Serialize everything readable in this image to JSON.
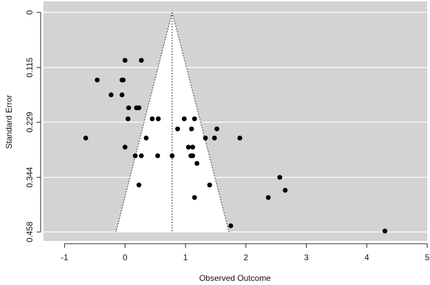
{
  "chart_data": {
    "type": "scatter",
    "title": "",
    "xlabel": "Observed Outcome",
    "ylabel": "Standard Error",
    "xlim": [
      -1.35,
      5.0
    ],
    "ylim": [
      0,
      0.458
    ],
    "y_reversed": true,
    "x_ticks": [
      -1,
      0,
      1,
      2,
      3,
      4,
      5
    ],
    "x_tick_labels": [
      "-1",
      "0",
      "1",
      "2",
      "3",
      "4",
      "5"
    ],
    "y_ticks": [
      0,
      0.115,
      0.229,
      0.344,
      0.458
    ],
    "y_tick_labels": [
      "0",
      "0.115",
      "0.229",
      "0.344",
      "0.458"
    ],
    "grid": true,
    "background_color": "#d3d3d3",
    "funnel_fill": "#ffffff",
    "point_color": "#000000",
    "funnel": {
      "center": 0.78,
      "bottom_left": -0.15,
      "bottom_right": 1.72,
      "se_max": 0.458
    },
    "points": [
      {
        "x": -0.65,
        "y": 0.262
      },
      {
        "x": -0.46,
        "y": 0.141
      },
      {
        "x": -0.23,
        "y": 0.172
      },
      {
        "x": -0.05,
        "y": 0.172
      },
      {
        "x": -0.05,
        "y": 0.141
      },
      {
        "x": -0.03,
        "y": 0.141
      },
      {
        "x": 0.0,
        "y": 0.1
      },
      {
        "x": 0.27,
        "y": 0.1
      },
      {
        "x": 0.06,
        "y": 0.199
      },
      {
        "x": 0.19,
        "y": 0.199
      },
      {
        "x": 0.23,
        "y": 0.199
      },
      {
        "x": 0.05,
        "y": 0.222
      },
      {
        "x": 0.0,
        "y": 0.281
      },
      {
        "x": 0.17,
        "y": 0.299
      },
      {
        "x": 0.27,
        "y": 0.299
      },
      {
        "x": 0.23,
        "y": 0.36
      },
      {
        "x": 0.35,
        "y": 0.262
      },
      {
        "x": 0.45,
        "y": 0.222
      },
      {
        "x": 0.55,
        "y": 0.222
      },
      {
        "x": 0.54,
        "y": 0.299
      },
      {
        "x": 0.78,
        "y": 0.299
      },
      {
        "x": 0.87,
        "y": 0.243
      },
      {
        "x": 0.98,
        "y": 0.222
      },
      {
        "x": 1.15,
        "y": 0.222
      },
      {
        "x": 1.1,
        "y": 0.243
      },
      {
        "x": 1.05,
        "y": 0.281
      },
      {
        "x": 1.12,
        "y": 0.281
      },
      {
        "x": 1.09,
        "y": 0.299
      },
      {
        "x": 1.12,
        "y": 0.299
      },
      {
        "x": 1.19,
        "y": 0.315
      },
      {
        "x": 1.33,
        "y": 0.262
      },
      {
        "x": 1.48,
        "y": 0.262
      },
      {
        "x": 1.52,
        "y": 0.243
      },
      {
        "x": 1.9,
        "y": 0.262
      },
      {
        "x": 1.4,
        "y": 0.36
      },
      {
        "x": 1.15,
        "y": 0.386
      },
      {
        "x": 1.75,
        "y": 0.445
      },
      {
        "x": 2.37,
        "y": 0.386
      },
      {
        "x": 2.56,
        "y": 0.344
      },
      {
        "x": 2.65,
        "y": 0.371
      },
      {
        "x": 4.3,
        "y": 0.456
      }
    ]
  }
}
